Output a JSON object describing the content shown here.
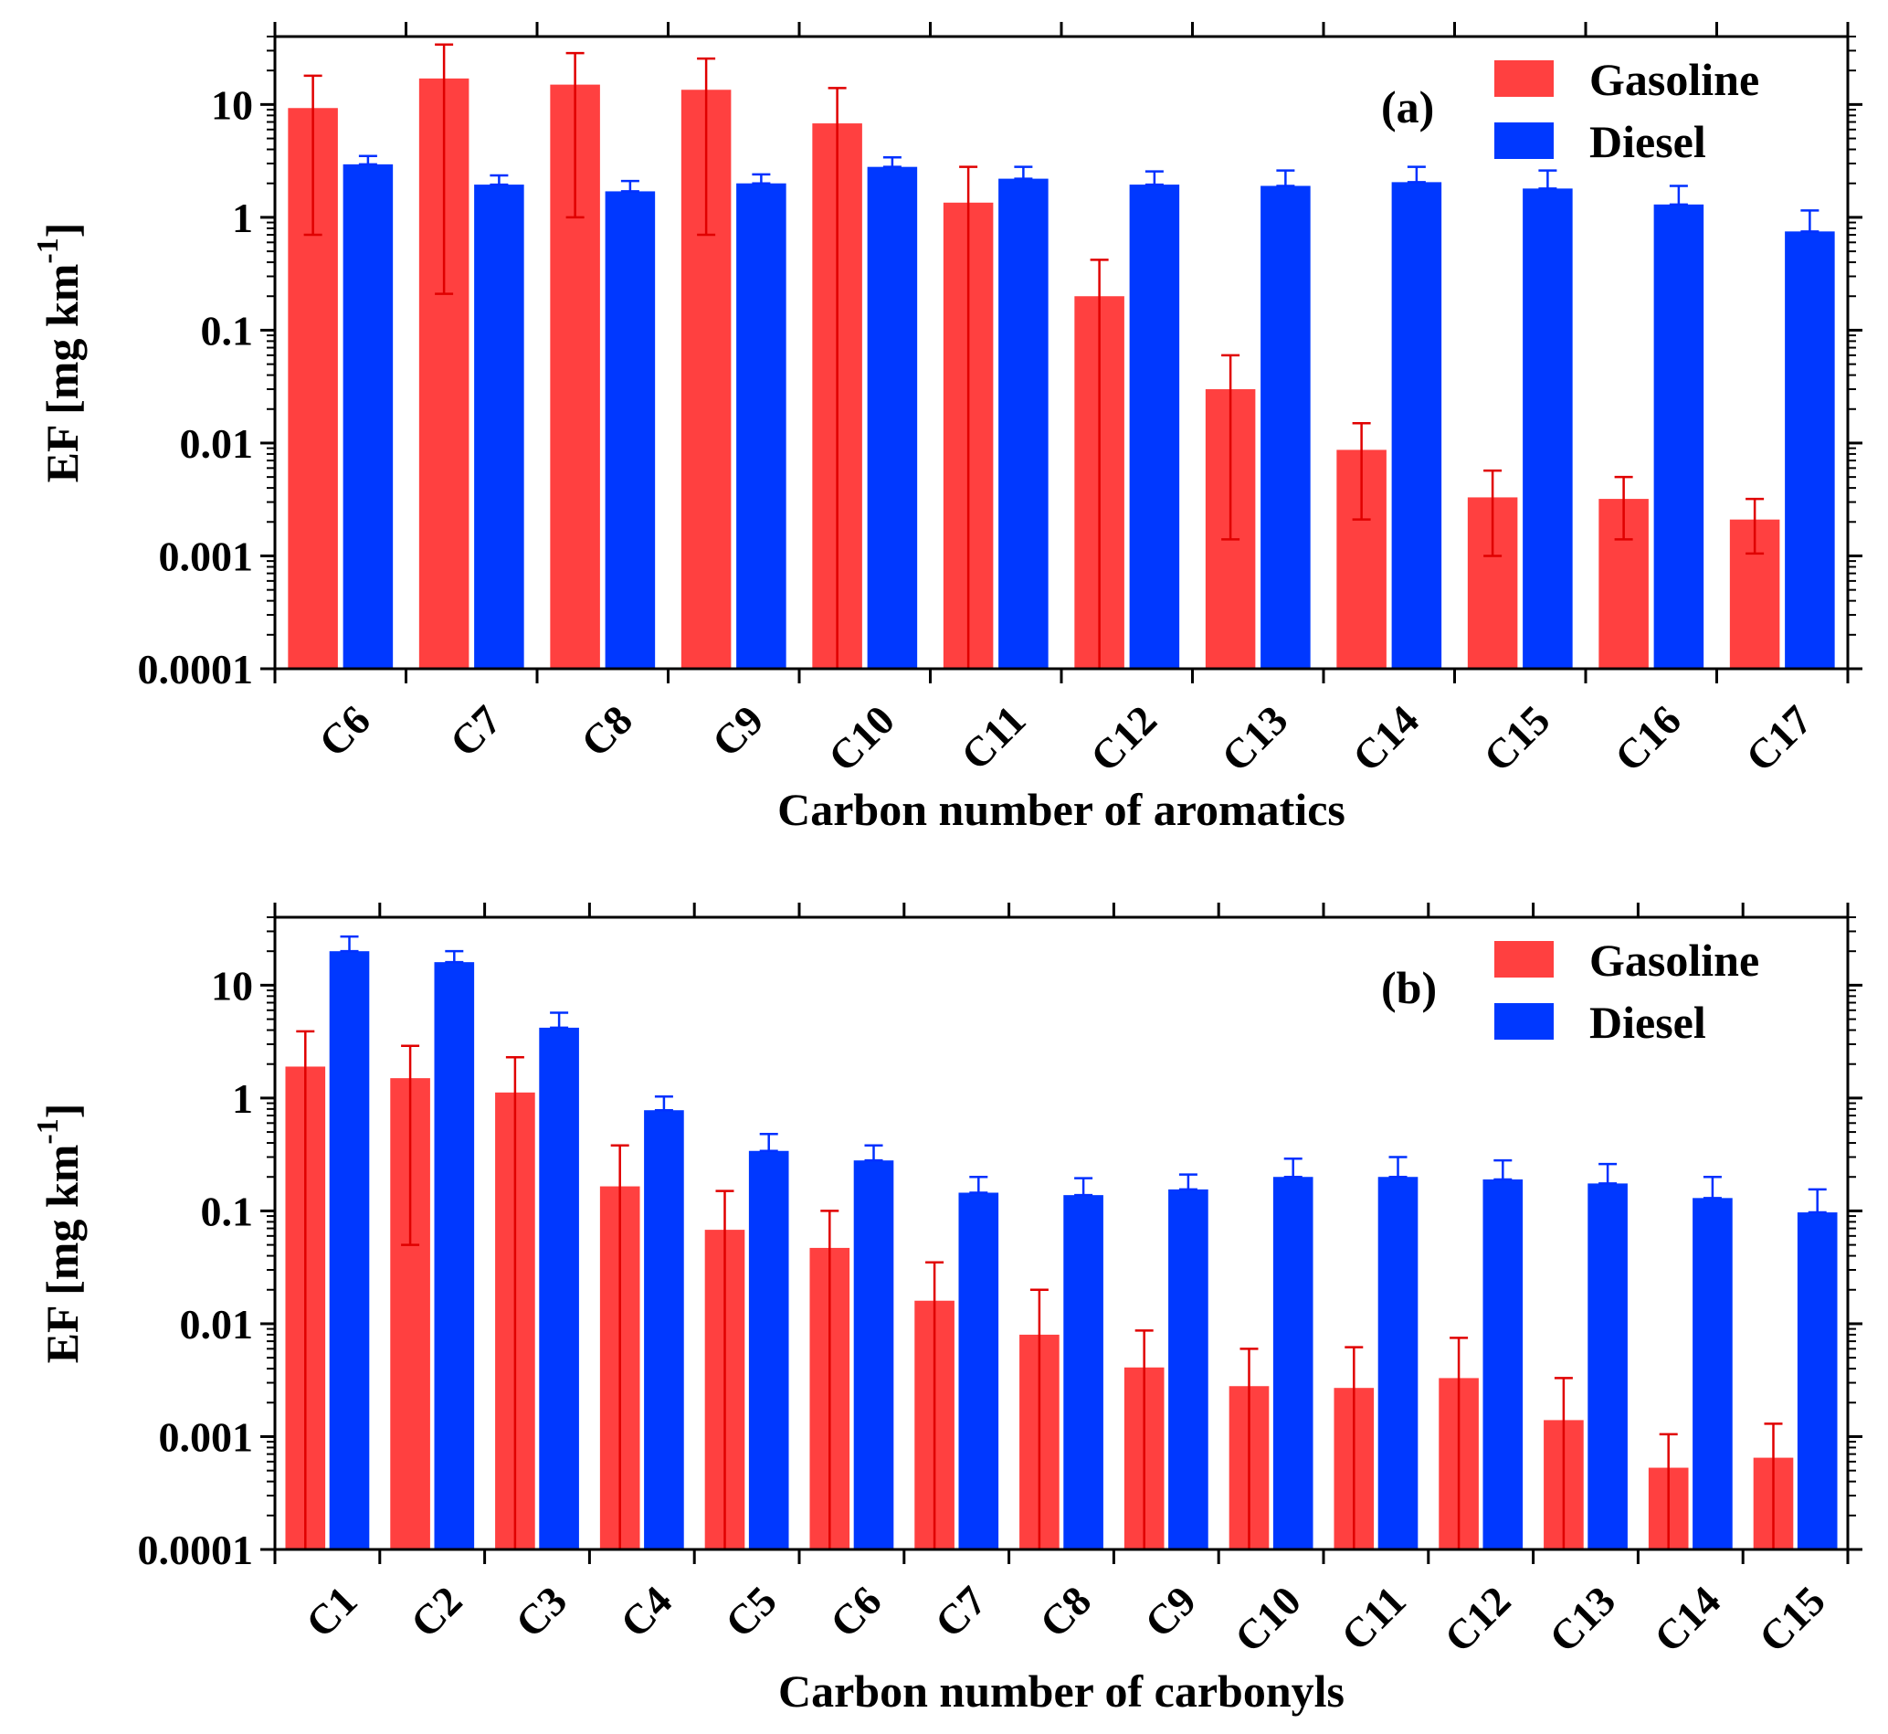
{
  "chart_data": [
    {
      "type": "bar",
      "panel_label": "(a)",
      "xlabel": "Carbon number of aromatics",
      "ylabel": "EF [mg km",
      "ylabel_superscript": "-1",
      "ylabel_close": "]",
      "yscale": "log",
      "ylim": [
        0.0001,
        40
      ],
      "yticks": [
        0.0001,
        0.001,
        0.01,
        0.1,
        1,
        10
      ],
      "ytick_labels": [
        "0.0001",
        "0.001",
        "0.01",
        "0.1",
        "1",
        "10"
      ],
      "grid": false,
      "legend_position": "top-right",
      "categories": [
        "C6",
        "C7",
        "C8",
        "C9",
        "C10",
        "C11",
        "C12",
        "C13",
        "C14",
        "C15",
        "C16",
        "C17"
      ],
      "series": [
        {
          "name": "Gasoline",
          "color": "#ff4040",
          "values": [
            9.3,
            17,
            15,
            13.5,
            6.8,
            1.35,
            0.2,
            0.03,
            0.0087,
            0.0033,
            0.0032,
            0.0021
          ],
          "err_low": [
            0.7,
            0.21,
            1.0,
            0.7,
            0.0001,
            0.0001,
            0.0001,
            0.0014,
            0.0021,
            0.001,
            0.0014,
            0.00105
          ],
          "err_high": [
            18,
            34,
            28.5,
            25.5,
            14,
            2.8,
            0.42,
            0.06,
            0.015,
            0.0057,
            0.005,
            0.0032
          ]
        },
        {
          "name": "Diesel",
          "color": "#0038ff",
          "values": [
            2.95,
            1.95,
            1.7,
            2.0,
            2.8,
            2.2,
            1.95,
            1.9,
            2.05,
            1.8,
            1.3,
            0.75
          ],
          "err_low": [
            2.95,
            1.95,
            1.7,
            2.0,
            2.8,
            2.2,
            1.95,
            1.9,
            2.05,
            1.8,
            1.3,
            0.75
          ],
          "err_high": [
            3.5,
            2.35,
            2.1,
            2.4,
            3.4,
            2.8,
            2.55,
            2.6,
            2.8,
            2.6,
            1.9,
            1.15
          ]
        }
      ]
    },
    {
      "type": "bar",
      "panel_label": "(b)",
      "xlabel": "Carbon number of carbonyls",
      "ylabel": "EF [mg km",
      "ylabel_superscript": "-1",
      "ylabel_close": "]",
      "yscale": "log",
      "ylim": [
        0.0001,
        40
      ],
      "yticks": [
        0.0001,
        0.001,
        0.01,
        0.1,
        1,
        10
      ],
      "ytick_labels": [
        "0.0001",
        "0.001",
        "0.01",
        "0.1",
        "1",
        "10"
      ],
      "grid": false,
      "legend_position": "top-right",
      "categories": [
        "C1",
        "C2",
        "C3",
        "C4",
        "C5",
        "C6",
        "C7",
        "C8",
        "C9",
        "C10",
        "C11",
        "C12",
        "C13",
        "C14",
        "C15"
      ],
      "series": [
        {
          "name": "Gasoline",
          "color": "#ff4040",
          "values": [
            1.9,
            1.5,
            1.12,
            0.165,
            0.068,
            0.047,
            0.016,
            0.008,
            0.0041,
            0.0028,
            0.0027,
            0.0033,
            0.0014,
            0.00053,
            0.00065
          ],
          "err_low": [
            0.0001,
            0.05,
            0.0001,
            0.0001,
            0.0001,
            0.0001,
            0.0001,
            0.0001,
            0.0001,
            0.0001,
            0.0001,
            0.0001,
            0.0001,
            0.0001,
            0.0001
          ],
          "err_high": [
            3.9,
            2.9,
            2.3,
            0.38,
            0.15,
            0.1,
            0.035,
            0.02,
            0.0087,
            0.006,
            0.0062,
            0.0075,
            0.0033,
            0.00105,
            0.0013
          ]
        },
        {
          "name": "Diesel",
          "color": "#0038ff",
          "values": [
            20,
            16,
            4.2,
            0.78,
            0.34,
            0.28,
            0.145,
            0.138,
            0.155,
            0.2,
            0.2,
            0.19,
            0.175,
            0.13,
            0.097
          ],
          "err_low": [
            20,
            16,
            4.2,
            0.78,
            0.34,
            0.28,
            0.145,
            0.138,
            0.155,
            0.2,
            0.2,
            0.19,
            0.175,
            0.13,
            0.097
          ],
          "err_high": [
            27,
            20,
            5.7,
            1.03,
            0.48,
            0.38,
            0.2,
            0.195,
            0.21,
            0.29,
            0.3,
            0.28,
            0.26,
            0.2,
            0.155
          ]
        }
      ]
    }
  ]
}
